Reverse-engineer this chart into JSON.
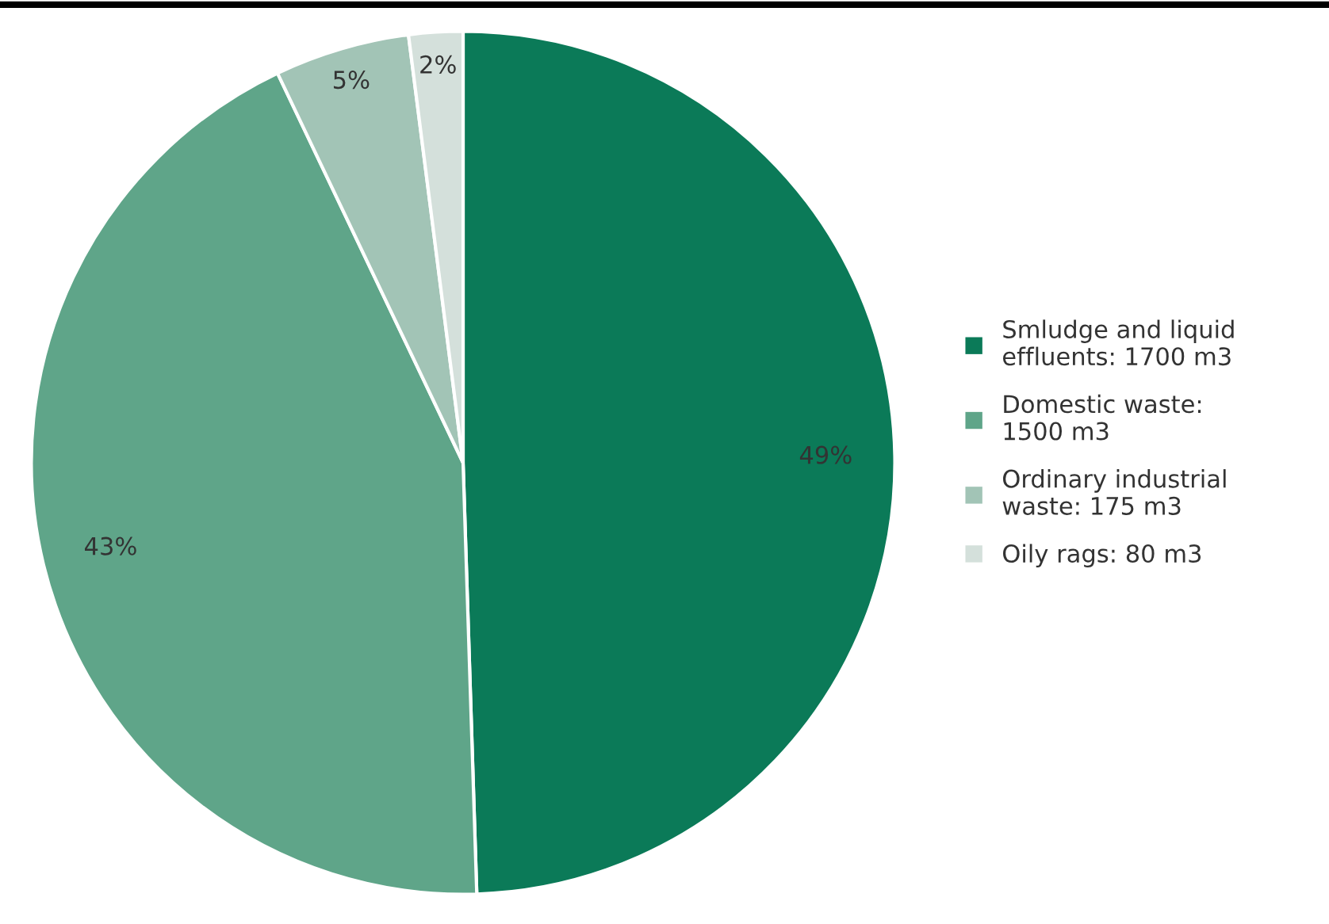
{
  "chart_data": {
    "type": "pie",
    "categories": [
      "Smludge and liquid\neffluents: 1700 m3",
      "Domestic waste:\n1500 m3",
      "Ordinary industrial\nwaste: 175 m3",
      "Oily rags: 80 m3"
    ],
    "values": [
      49,
      43,
      5,
      2
    ],
    "value_labels": [
      "49%",
      "43%",
      "5%",
      "2%"
    ],
    "colors": [
      "#0b7a58",
      "#5fa589",
      "#a2c4b6",
      "#d4e0db"
    ],
    "legend": "right"
  }
}
